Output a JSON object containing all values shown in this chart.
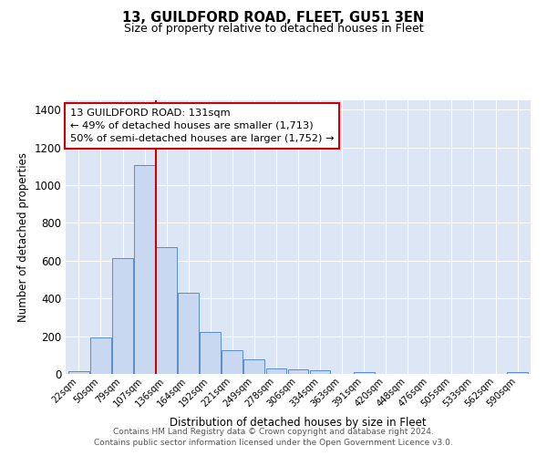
{
  "title1": "13, GUILDFORD ROAD, FLEET, GU51 3EN",
  "title2": "Size of property relative to detached houses in Fleet",
  "xlabel": "Distribution of detached houses by size in Fleet",
  "ylabel": "Number of detached properties",
  "bar_labels": [
    "22sqm",
    "50sqm",
    "79sqm",
    "107sqm",
    "136sqm",
    "164sqm",
    "192sqm",
    "221sqm",
    "249sqm",
    "278sqm",
    "306sqm",
    "334sqm",
    "363sqm",
    "391sqm",
    "420sqm",
    "448sqm",
    "476sqm",
    "505sqm",
    "533sqm",
    "562sqm",
    "590sqm"
  ],
  "bar_heights": [
    15,
    193,
    615,
    1105,
    670,
    430,
    220,
    125,
    75,
    30,
    25,
    20,
    0,
    12,
    0,
    0,
    0,
    0,
    0,
    0,
    12
  ],
  "bar_color": "#c8d8f0",
  "bar_edge_color": "#5b8cc8",
  "vline_color": "#cc0000",
  "vline_x": 3.5,
  "annotation_title": "13 GUILDFORD ROAD: 131sqm",
  "annotation_line1": "← 49% of detached houses are smaller (1,713)",
  "annotation_line2": "50% of semi-detached houses are larger (1,752) →",
  "annotation_box_color": "#ffffff",
  "annotation_box_edge_color": "#cc0000",
  "footer1": "Contains HM Land Registry data © Crown copyright and database right 2024.",
  "footer2": "Contains public sector information licensed under the Open Government Licence v3.0.",
  "ylim": [
    0,
    1450
  ],
  "yticks": [
    0,
    200,
    400,
    600,
    800,
    1000,
    1200,
    1400
  ],
  "fig_bg": "#ffffff",
  "plot_bg": "#dce6f5",
  "grid_color": "#ffffff",
  "title1_fontsize": 10.5,
  "title2_fontsize": 9
}
